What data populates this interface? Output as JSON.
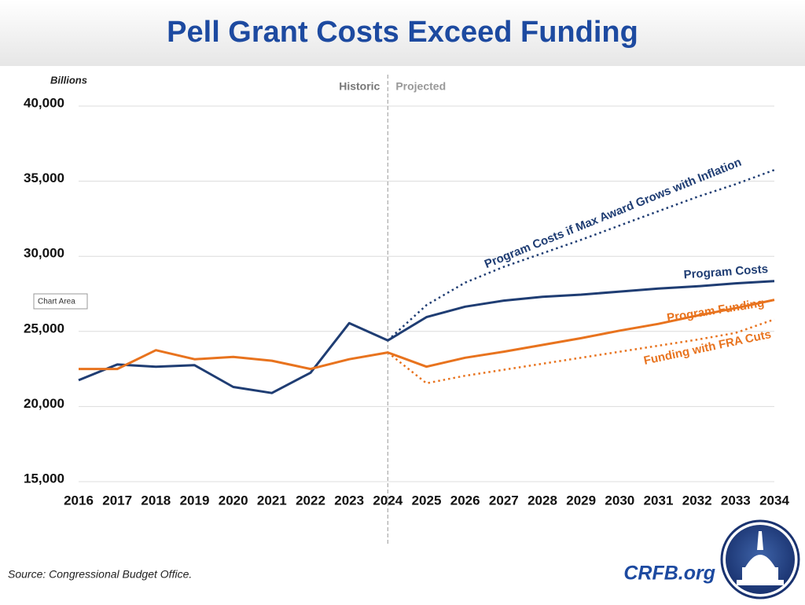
{
  "chart_data": {
    "type": "line",
    "title": "Pell Grant Costs Exceed Funding",
    "y_axis_label": "Billions",
    "historic_label": "Historic",
    "projected_label": "Projected",
    "tooltip": "Chart Area",
    "source": "Source: Congressional Budget Office.",
    "brand": "CRFB.org",
    "categories": [
      "2016",
      "2017",
      "2018",
      "2019",
      "2020",
      "2021",
      "2022",
      "2023",
      "2024",
      "2025",
      "2026",
      "2027",
      "2028",
      "2029",
      "2030",
      "2031",
      "2032",
      "2033",
      "2034"
    ],
    "ylim": [
      15000,
      40000
    ],
    "yticks": [
      {
        "value": 15000,
        "label": "15,000"
      },
      {
        "value": 20000,
        "label": "20,000"
      },
      {
        "value": 25000,
        "label": "25,000"
      },
      {
        "value": 30000,
        "label": "30,000"
      },
      {
        "value": 35000,
        "label": "35,000"
      },
      {
        "value": 40000,
        "label": "40,000"
      }
    ],
    "grid": true,
    "series": [
      {
        "name": "Program Costs",
        "color": "#1f3d73",
        "dash": "solid",
        "values": [
          21750,
          22800,
          22650,
          22750,
          21300,
          20900,
          22250,
          25550,
          24400,
          25950,
          26650,
          27050,
          27300,
          27450,
          27650,
          27850,
          28000,
          28200,
          28350
        ]
      },
      {
        "name": "Program Funding",
        "color": "#e8731e",
        "dash": "solid",
        "values": [
          22500,
          22500,
          23750,
          23150,
          23300,
          23050,
          22500,
          23150,
          23600,
          22650,
          23250,
          23650,
          24100,
          24550,
          25050,
          25500,
          26050,
          26550,
          27100
        ]
      },
      {
        "name": "Program Costs if Max Award Grows with Inflation",
        "color": "#1f3d73",
        "dash": "dotted",
        "values": [
          null,
          null,
          null,
          null,
          null,
          null,
          null,
          null,
          24400,
          26750,
          28250,
          29300,
          30200,
          31100,
          32050,
          33000,
          33950,
          34800,
          35750
        ]
      },
      {
        "name": "Funding with FRA Cuts",
        "color": "#e8731e",
        "dash": "dotted",
        "values": [
          null,
          null,
          null,
          null,
          null,
          null,
          null,
          null,
          23600,
          21550,
          22050,
          22450,
          22850,
          23250,
          23650,
          24050,
          24450,
          24900,
          25800
        ]
      }
    ]
  }
}
